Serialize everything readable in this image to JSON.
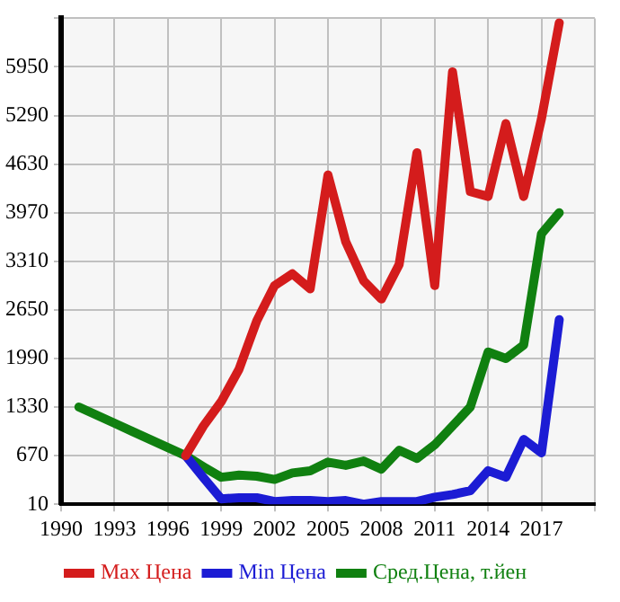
{
  "chart_data": {
    "type": "line",
    "x": [
      1991,
      1992,
      1993,
      1994,
      1995,
      1996,
      1997,
      1998,
      1999,
      2000,
      2001,
      2002,
      2003,
      2004,
      2005,
      2006,
      2007,
      2008,
      2009,
      2010,
      2011,
      2012,
      2013,
      2014,
      2015,
      2016,
      2017,
      2018
    ],
    "series": [
      {
        "name": "Max Цена",
        "color": "#d41c1c",
        "values": [
          null,
          null,
          null,
          null,
          null,
          null,
          670,
          1073,
          1403,
          1843,
          2503,
          2980,
          3140,
          2935,
          4483,
          3574,
          3046,
          2797,
          3266,
          4784,
          2980,
          5884,
          4256,
          4190,
          5180,
          4190,
          5246,
          6550
        ]
      },
      {
        "name": "Min Цена",
        "color": "#1c1cd4",
        "values": [
          null,
          null,
          null,
          null,
          null,
          null,
          670,
          370,
          83,
          98,
          98,
          47,
          61,
          61,
          47,
          61,
          10,
          47,
          47,
          47,
          105,
          142,
          193,
          465,
          377,
          890,
          707,
          2518
        ]
      },
      {
        "name": "Сред.Цена, т.йен",
        "color": "#108010",
        "values": [
          1330,
          1220,
          1110,
          1000,
          890,
          780,
          670,
          520,
          377,
          406,
          391,
          347,
          435,
          465,
          582,
          538,
          597,
          487,
          743,
          633,
          817,
          1073,
          1330,
          2078,
          1990,
          2173,
          3684,
          3970
        ]
      }
    ],
    "xlim": [
      1990,
      2020
    ],
    "xticks": [
      1990,
      1993,
      1996,
      1999,
      2002,
      2005,
      2008,
      2011,
      2014,
      2017,
      {
        "value": 2020,
        "label": null
      }
    ],
    "ylim": [
      10,
      6610
    ],
    "yticks": [
      10,
      670,
      1330,
      1990,
      2650,
      3310,
      3970,
      4630,
      5290,
      5950,
      {
        "value": 6610,
        "label": null
      }
    ],
    "grid": true,
    "legend": "bottom",
    "marker": "none",
    "line_style": "solid"
  }
}
